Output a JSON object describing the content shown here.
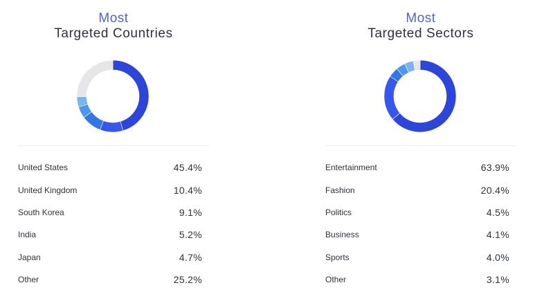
{
  "chart_data": [
    {
      "type": "pie",
      "title_line1": "Most",
      "title_line2": "Targeted Countries",
      "categories": [
        "United States",
        "United Kingdom",
        "South Korea",
        "India",
        "Japan",
        "Other"
      ],
      "values": [
        45.4,
        10.4,
        9.1,
        5.2,
        4.7,
        25.2
      ],
      "value_labels": [
        "45.4%",
        "10.4%",
        "9.1%",
        "5.2%",
        "4.7%",
        "25.2%"
      ],
      "colors": [
        "#2c45db",
        "#3656f0",
        "#3177e6",
        "#4d95ee",
        "#7ab4f3",
        "#e6e6e9"
      ]
    },
    {
      "type": "pie",
      "title_line1": "Most",
      "title_line2": "Targeted Sectors",
      "categories": [
        "Entertainment",
        "Fashion",
        "Politics",
        "Business",
        "Sports",
        "Other"
      ],
      "values": [
        63.9,
        20.4,
        4.5,
        4.1,
        4.0,
        3.1
      ],
      "value_labels": [
        "63.9%",
        "20.4%",
        "4.5%",
        "4.1%",
        "4.0%",
        "3.1%"
      ],
      "colors": [
        "#2c45db",
        "#3656f0",
        "#3177e6",
        "#4d95ee",
        "#7ab4f3",
        "#e6e6e9"
      ]
    }
  ]
}
